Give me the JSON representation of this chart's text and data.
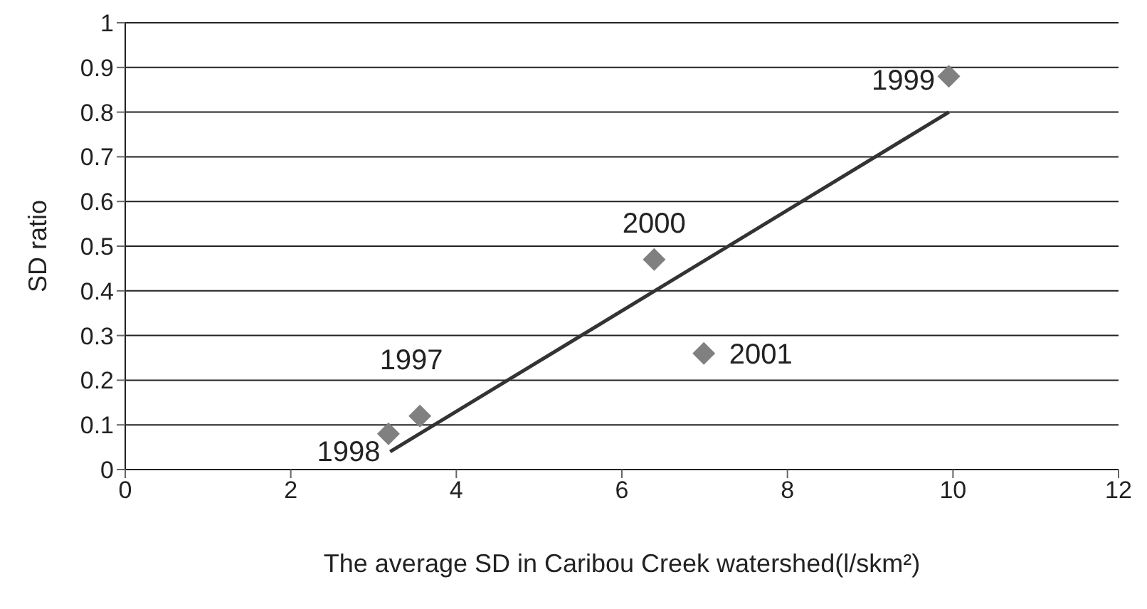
{
  "chart_data": {
    "type": "scatter",
    "xlabel": "The average SD in Caribou Creek watershed(l/skm²)",
    "ylabel": "SD ratio",
    "xlim": [
      0,
      12
    ],
    "xticks": [
      0,
      2,
      4,
      6,
      8,
      10,
      12
    ],
    "ylim": [
      0,
      1
    ],
    "yticks": [
      0,
      0.1,
      0.2,
      0.3,
      0.4,
      0.5,
      0.6,
      0.7,
      0.8,
      0.9,
      1
    ],
    "grid": "y",
    "marker": "diamond",
    "legend": false,
    "series": [
      {
        "color": "#808080",
        "x": [
          3.18,
          3.56,
          9.95,
          6.39,
          6.99
        ],
        "values": [
          0.08,
          0.12,
          0.88,
          0.47,
          0.26
        ]
      },
      {
        "type": "line",
        "marker": "none",
        "color": "#333333",
        "x": [
          3.2,
          9.95
        ],
        "values": [
          0.04,
          0.8
        ]
      }
    ],
    "annotations": [
      {
        "text": "1998",
        "x": 3.18,
        "y": 0.08
      },
      {
        "text": "1997",
        "x": 3.56,
        "y": 0.12
      },
      {
        "text": "1999",
        "x": 9.95,
        "y": 0.88
      },
      {
        "text": "2000",
        "x": 6.39,
        "y": 0.47
      },
      {
        "text": "2001",
        "x": 6.99,
        "y": 0.26
      }
    ]
  }
}
